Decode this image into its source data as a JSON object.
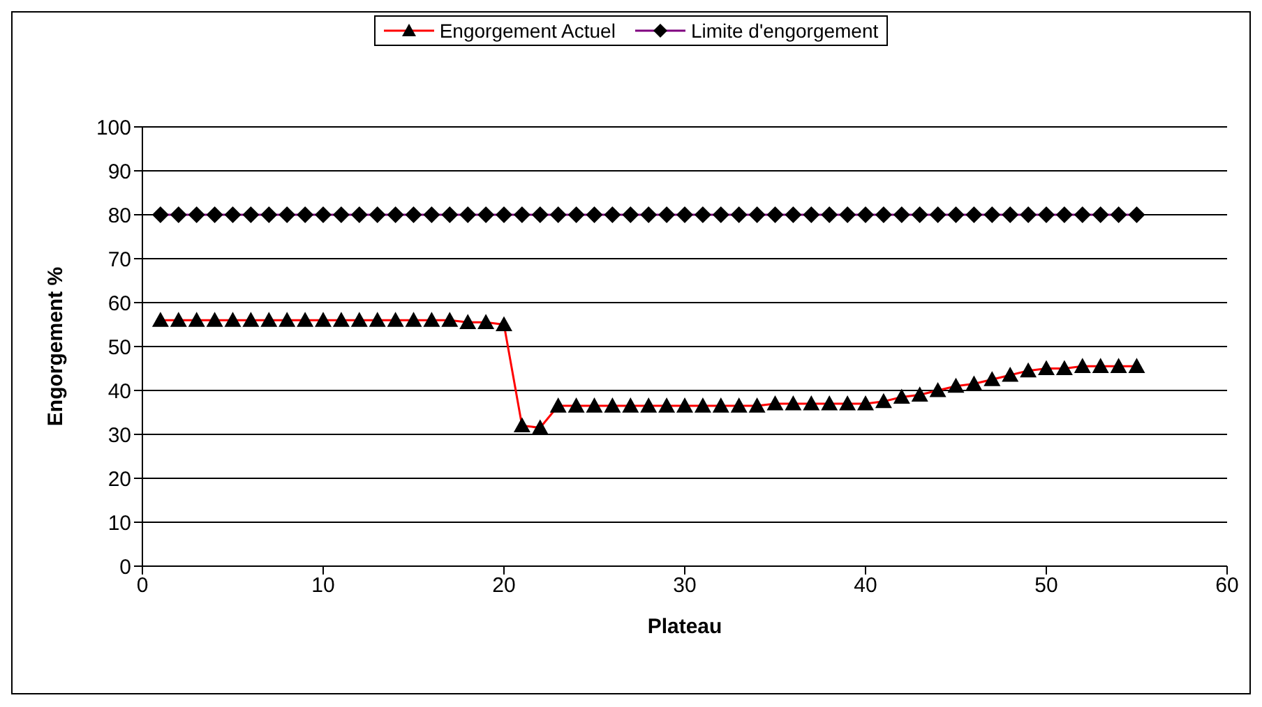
{
  "chart_data": {
    "type": "line",
    "xlabel": "Plateau",
    "ylabel": "Engorgement %",
    "x": [
      1,
      2,
      3,
      4,
      5,
      6,
      7,
      8,
      9,
      10,
      11,
      12,
      13,
      14,
      15,
      16,
      17,
      18,
      19,
      20,
      21,
      22,
      23,
      24,
      25,
      26,
      27,
      28,
      29,
      30,
      31,
      32,
      33,
      34,
      35,
      36,
      37,
      38,
      39,
      40,
      41,
      42,
      43,
      44,
      45,
      46,
      47,
      48,
      49,
      50,
      51,
      52,
      53,
      54,
      55
    ],
    "series": [
      {
        "name": "Engorgement Actuel",
        "color": "#ff0000",
        "marker": "triangle",
        "values": [
          56,
          56,
          56,
          56,
          56,
          56,
          56,
          56,
          56,
          56,
          56,
          56,
          56,
          56,
          56,
          56,
          56,
          55.5,
          55.5,
          55,
          32,
          31.5,
          36.5,
          36.5,
          36.5,
          36.5,
          36.5,
          36.5,
          36.5,
          36.5,
          36.5,
          36.5,
          36.5,
          36.5,
          37,
          37,
          37,
          37,
          37,
          37,
          37.5,
          38.5,
          39,
          40,
          41,
          41.5,
          42.5,
          43.5,
          44.5,
          45,
          45,
          45.5,
          45.5,
          45.5,
          45.5
        ]
      },
      {
        "name": "Limite d'engorgement",
        "color": "#800080",
        "marker": "diamond",
        "values": [
          80,
          80,
          80,
          80,
          80,
          80,
          80,
          80,
          80,
          80,
          80,
          80,
          80,
          80,
          80,
          80,
          80,
          80,
          80,
          80,
          80,
          80,
          80,
          80,
          80,
          80,
          80,
          80,
          80,
          80,
          80,
          80,
          80,
          80,
          80,
          80,
          80,
          80,
          80,
          80,
          80,
          80,
          80,
          80,
          80,
          80,
          80,
          80,
          80,
          80,
          80,
          80,
          80,
          80,
          80
        ]
      }
    ],
    "xlim": [
      0,
      60
    ],
    "xticks": [
      0,
      10,
      20,
      30,
      40,
      50,
      60
    ],
    "ylim": [
      0,
      100
    ],
    "yticks": [
      0,
      10,
      20,
      30,
      40,
      50,
      60,
      70,
      80,
      90,
      100
    ],
    "grid": "y",
    "legend": "top",
    "line_style": "solid"
  }
}
